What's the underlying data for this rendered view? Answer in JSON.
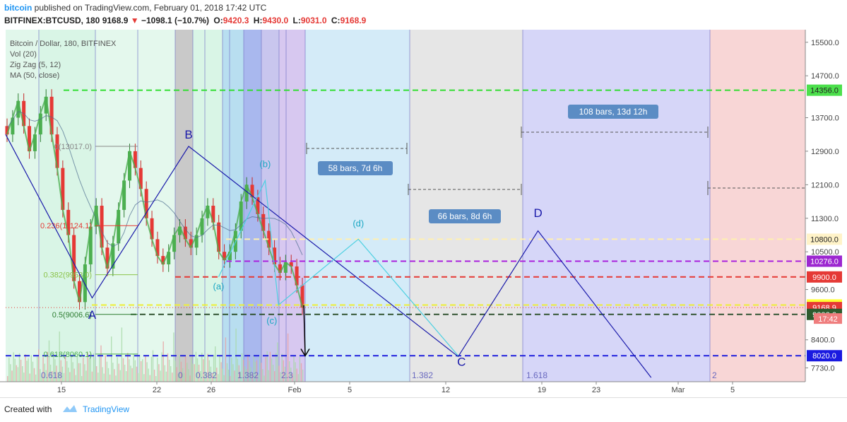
{
  "header": {
    "brand": "bitcoin",
    "published_text": "published on TradingView.com, February 01, 2018 17:42 UTC",
    "symbol": "BITFINEX:BTCUSD, 180",
    "last": "9168.9",
    "change": "−1098.1 (−10.7%)",
    "o_label": "O:",
    "o_value": "9420.3",
    "h_label": "H:",
    "h_value": "9430.0",
    "l_label": "L:",
    "l_value": "9031.0",
    "c_label": "C:",
    "c_value": "9168.9"
  },
  "legend": {
    "title": "Bitcoin / Dollar, 180, BITFINEX",
    "vol": "Vol (20)",
    "zigzag": "Zig Zag (5, 12)",
    "ma": "MA (50, close)"
  },
  "footer": {
    "created": "Created with",
    "tv": "TradingView"
  },
  "colors": {
    "accent": "#2196f3",
    "down": "#e53935",
    "wave_line": "#1a1aaa",
    "sub_wave_line": "#4dd0e1",
    "zigzag": "#4caf50",
    "green_zone": "#d9f5e6",
    "blue_zone": "#d4ebf8",
    "gray_zone": "#e6e6e6",
    "purple_zone": "#d6d6f8",
    "red_zone": "#f8d6d6"
  },
  "chart_data": {
    "type": "candlestick",
    "y_axis": {
      "min": 7400,
      "max": 15800,
      "ticks": [
        15500,
        14700,
        13700,
        12900,
        12100,
        11300,
        10500,
        9600,
        8400,
        7730
      ],
      "tick_labels": [
        "15500.0",
        "14700.0",
        "13700.0",
        "12900.0",
        "12100.0",
        "11300.0",
        "10500.0",
        "9600.0",
        "8400.0",
        "7730.0"
      ]
    },
    "x_axis": {
      "start_day": 11,
      "end_day": 48.5,
      "ticks": [
        {
          "day": 15,
          "label": "15"
        },
        {
          "day": 22,
          "label": "22"
        },
        {
          "day": 26,
          "label": "26"
        },
        {
          "day": 32,
          "label": "Feb"
        },
        {
          "day": 35,
          "label": "5"
        },
        {
          "day": 42,
          "label": "12"
        },
        {
          "day": 49,
          "label": "19"
        },
        {
          "day": 53,
          "label": "23"
        },
        {
          "day": 59,
          "label": "Mar"
        },
        {
          "day": 63,
          "label": "5"
        }
      ]
    },
    "price_tags": [
      {
        "value": 14356.0,
        "label": "14356.0",
        "color": "#4ce04c"
      },
      {
        "value": 10800.0,
        "label": "10800.0",
        "color": "#fff3c8"
      },
      {
        "value": 10276.0,
        "label": "10276.0",
        "color": "#9c27d0"
      },
      {
        "value": 9900.0,
        "label": "9900.0",
        "color": "#e53935"
      },
      {
        "value": 9231.1,
        "label": "9231.1",
        "color": "#ffff33"
      },
      {
        "value": 9168.9,
        "label": "9168.9",
        "color": "#e53935"
      },
      {
        "value": 9006.6,
        "label": "9006.6",
        "color": "#2e5b2e"
      },
      {
        "value": 8020.0,
        "label": "8020.0",
        "color": "#1a1ae0"
      }
    ],
    "clock_tag": "17:42",
    "horizontal_lines": [
      {
        "value": 14356.0,
        "color": "#33dd33"
      },
      {
        "value": 10800.0,
        "color": "#fff0b0"
      },
      {
        "value": 10276.0,
        "color": "#aa22dd"
      },
      {
        "value": 9900.0,
        "color": "#e53935"
      },
      {
        "value": 9231.1,
        "color": "#eeee33"
      },
      {
        "value": 9006.6,
        "color": "#335533"
      },
      {
        "value": 8020.0,
        "color": "#2222dd"
      }
    ],
    "fib_levels": [
      {
        "label": "0(13017.0)",
        "value": 13017.0
      },
      {
        "label": "0.236(11124.1)",
        "value": 11124.1
      },
      {
        "label": "0.382(9953.0)",
        "value": 9953.0
      },
      {
        "label": "0.5(9006.6)",
        "value": 9006.6
      },
      {
        "label": "0.618(8060.1)",
        "value": 8060.1
      }
    ],
    "wave_labels": [
      {
        "label": "A",
        "x": 12.3,
        "value": 8900
      },
      {
        "label": "B",
        "x": 13.75,
        "value": 13200
      },
      {
        "label": "(a)",
        "x": 14.2,
        "value": 9600
      },
      {
        "label": "(b)",
        "x": 14.9,
        "value": 12520
      },
      {
        "label": "(c)",
        "x": 15.0,
        "value": 8780
      },
      {
        "label": "(d)",
        "x": 16.3,
        "value": 11100
      },
      {
        "label": "C",
        "x": 17.85,
        "value": 7780
      },
      {
        "label": "D",
        "x": 19.0,
        "value": 11330
      }
    ],
    "main_wave": [
      [
        11.0,
        13300
      ],
      [
        12.3,
        9400
      ],
      [
        13.75,
        13017
      ],
      [
        17.8,
        8000
      ],
      [
        19.0,
        11000
      ],
      [
        20.7,
        7500
      ]
    ],
    "sub_wave": [
      [
        14.2,
        9900
      ],
      [
        14.9,
        12200
      ],
      [
        15.1,
        9231
      ],
      [
        16.3,
        10800
      ],
      [
        17.8,
        8020
      ]
    ],
    "measurements": [
      {
        "label": "58 bars, 7d 6h"
      },
      {
        "label": "66 bars, 8d 6h"
      },
      {
        "label": "108 bars, 13d 12h"
      }
    ],
    "fib_time_labels": [
      "0.618",
      "0",
      "0.382",
      "1.382",
      "2.3",
      "1.382",
      "1.618",
      "2"
    ],
    "candles_close": [
      13300,
      13700,
      14100,
      13500,
      12900,
      13300,
      13800,
      14200,
      13300,
      12500,
      11500,
      10900,
      9800,
      9300,
      10200,
      11100,
      11600,
      10600,
      10100,
      10700,
      11500,
      12200,
      12900,
      12500,
      12000,
      11300,
      10800,
      10400,
      10200,
      10500,
      10900,
      11100,
      10800,
      10600,
      10900,
      11300,
      11600,
      11200,
      10500,
      10300,
      10500,
      11000,
      11700,
      12100,
      11800,
      11400,
      11000,
      10600,
      10200,
      10000,
      10250,
      10150,
      9700,
      9168.9
    ]
  }
}
